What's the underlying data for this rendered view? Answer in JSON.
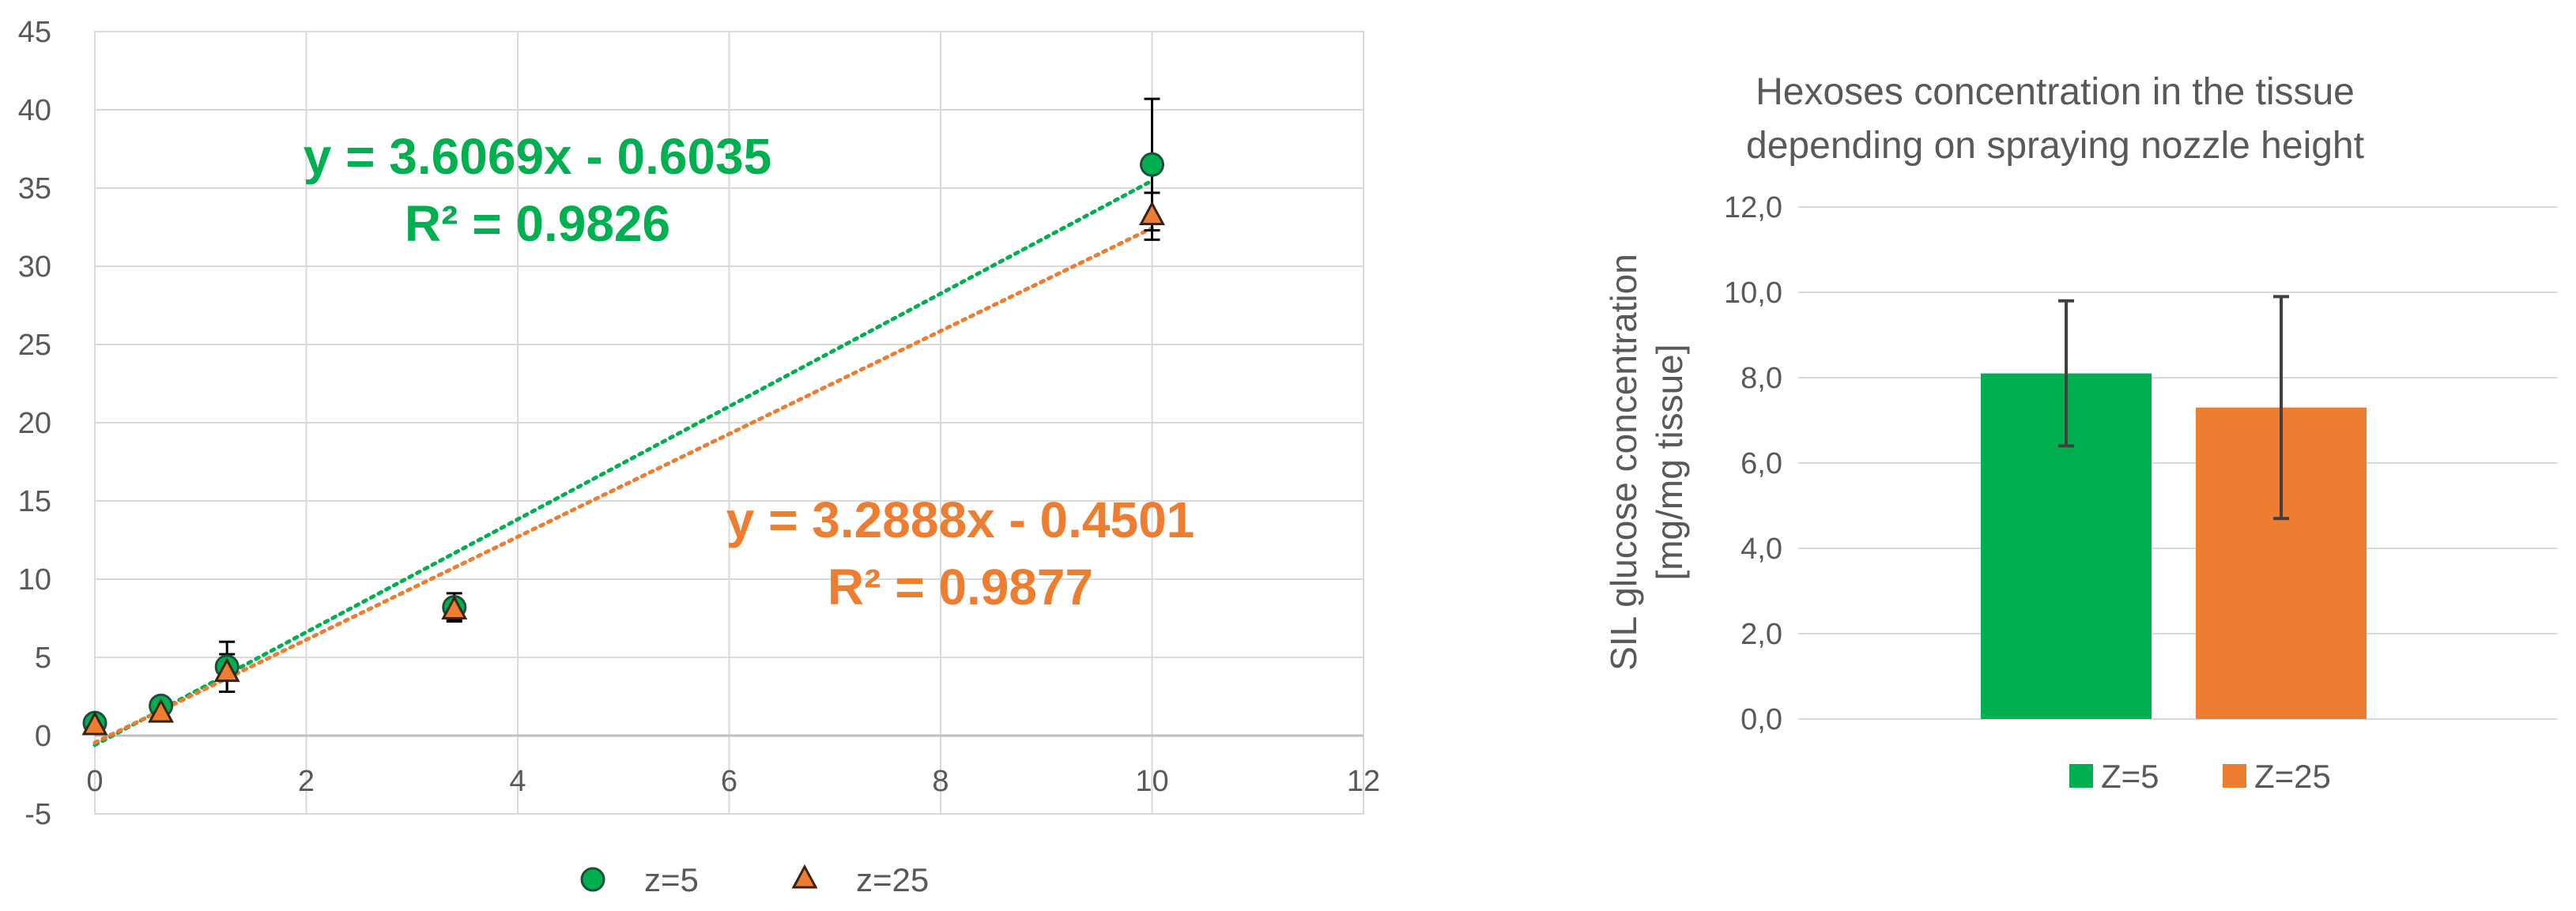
{
  "chart_data": [
    {
      "type": "scatter",
      "title": "",
      "xlabel": "",
      "ylabel": "",
      "xlim": [
        0,
        12
      ],
      "ylim": [
        -5,
        45
      ],
      "x_ticks": [
        "0",
        "2",
        "4",
        "6",
        "8",
        "10",
        "12"
      ],
      "y_ticks": [
        "-5",
        "0",
        "5",
        "10",
        "15",
        "20",
        "25",
        "30",
        "35",
        "40",
        "45"
      ],
      "grid": true,
      "legend_position": "bottom",
      "series": [
        {
          "name": "z=5",
          "marker": "circle",
          "color": "#00b050",
          "x": [
            0,
            0.625,
            1.25,
            3.4,
            10
          ],
          "y": [
            0.8,
            1.9,
            4.4,
            8.2,
            36.5
          ],
          "error": [
            0.4,
            0.4,
            1.6,
            0.9,
            4.2
          ],
          "trendline": {
            "slope": 3.6069,
            "intercept": -0.6035,
            "equation": "y = 3.6069x - 0.6035",
            "r2": "R² = 0.9826",
            "color": "#00b050"
          }
        },
        {
          "name": "z=25",
          "marker": "triangle",
          "color": "#ed7d31",
          "x": [
            0,
            0.625,
            1.25,
            3.4,
            10
          ],
          "y": [
            0.6,
            1.4,
            4.0,
            8.0,
            33.2
          ],
          "error": [
            0.4,
            0.3,
            1.2,
            0.6,
            1.5
          ],
          "trendline": {
            "slope": 3.2888,
            "intercept": -0.4501,
            "equation": "y = 3.2888x - 0.4501",
            "r2": "R² = 0.9877",
            "color": "#ed7d31"
          }
        }
      ]
    },
    {
      "type": "bar",
      "title": [
        "Hexoses concentration in the tissue",
        "depending on spraying nozzle height"
      ],
      "ylabel": [
        "SIL glucose concentration",
        "[mg/mg tissue]"
      ],
      "ylim": [
        0,
        12
      ],
      "y_ticks": [
        "0,0",
        "2,0",
        "4,0",
        "6,0",
        "8,0",
        "10,0",
        "12,0"
      ],
      "grid": true,
      "legend_position": "bottom",
      "series": [
        {
          "name": "Z=5",
          "value": 8.1,
          "error": 1.7,
          "color": "#00b050"
        },
        {
          "name": "Z=25",
          "value": 7.3,
          "error": 2.6,
          "color": "#ed7d31"
        }
      ]
    }
  ]
}
